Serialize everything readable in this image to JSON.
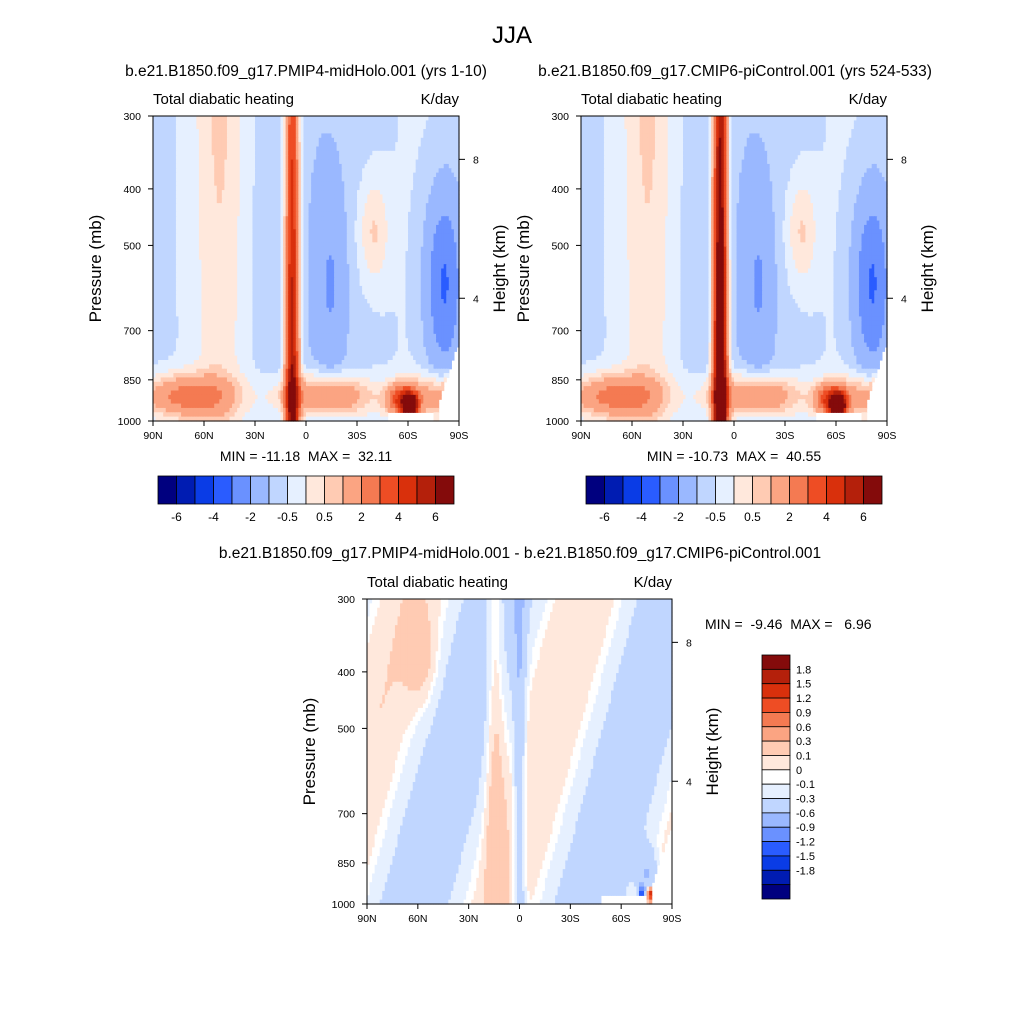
{
  "main_title": "JJA",
  "colors": {
    "abs_palette": [
      "#00007f",
      "#001cb2",
      "#0a3ce6",
      "#2a5cff",
      "#6a91ff",
      "#9ab8ff",
      "#c0d6ff",
      "#e6f0ff",
      "#ffe8dc",
      "#ffcbb3",
      "#fba482",
      "#f47a52",
      "#ee4d24",
      "#d9300c",
      "#b4200b",
      "#840b0b"
    ],
    "diff_palette": [
      "#00007f",
      "#001cb2",
      "#0a3ce6",
      "#2a5cff",
      "#6a91ff",
      "#9ab8ff",
      "#c0d6ff",
      "#e6f0ff",
      "#ffffff",
      "#ffe8dc",
      "#ffcbb3",
      "#fba482",
      "#f47a52",
      "#ee4d24",
      "#d9300c",
      "#b4200b",
      "#840b0b"
    ]
  },
  "chart_data": [
    {
      "type": "heatmap",
      "id": "panel-midholo",
      "title": "b.e21.B1850.f09_g17.PMIP4-midHolo.001 (yrs 1-10)",
      "subtitle_left": "Total diabatic heating",
      "subtitle_right": "K/day",
      "ylabel": "Pressure (mb)",
      "y2label": "Height (km)",
      "x_ticks": [
        "90N",
        "60N",
        "30N",
        "0",
        "30S",
        "60S",
        "90S"
      ],
      "y_ticks": [
        "300",
        "400",
        "500",
        "700",
        "850",
        "1000"
      ],
      "y2_ticks": [
        "8",
        "4"
      ],
      "stats": "MIN = -11.18  MAX =  32.11",
      "colorbar_labels": [
        "-6",
        "-4",
        "-2",
        "-0.5",
        "0.5",
        "2",
        "4",
        "6"
      ],
      "ylim": [
        1000,
        300
      ],
      "xlim": [
        90,
        -90
      ],
      "min": -11.18,
      "max": 32.11
    },
    {
      "type": "heatmap",
      "id": "panel-picontrol",
      "title": "b.e21.B1850.f09_g17.CMIP6-piControl.001 (yrs 524-533)",
      "subtitle_left": "Total diabatic heating",
      "subtitle_right": "K/day",
      "ylabel": "Pressure (mb)",
      "y2label": "Height (km)",
      "x_ticks": [
        "90N",
        "60N",
        "30N",
        "0",
        "30S",
        "60S",
        "90S"
      ],
      "y_ticks": [
        "300",
        "400",
        "500",
        "700",
        "850",
        "1000"
      ],
      "y2_ticks": [
        "8",
        "4"
      ],
      "stats": "MIN = -10.73  MAX =  40.55",
      "colorbar_labels": [
        "-6",
        "-4",
        "-2",
        "-0.5",
        "0.5",
        "2",
        "4",
        "6"
      ],
      "ylim": [
        1000,
        300
      ],
      "xlim": [
        90,
        -90
      ],
      "min": -10.73,
      "max": 40.55
    },
    {
      "type": "heatmap",
      "id": "panel-diff",
      "title": "b.e21.B1850.f09_g17.PMIP4-midHolo.001 - b.e21.B1850.f09_g17.CMIP6-piControl.001",
      "subtitle_left": "Total diabatic heating",
      "subtitle_right": "K/day",
      "ylabel": "Pressure (mb)",
      "y2label": "Height (km)",
      "x_ticks": [
        "90N",
        "60N",
        "30N",
        "0",
        "30S",
        "60S",
        "90S"
      ],
      "y_ticks": [
        "300",
        "400",
        "500",
        "700",
        "850",
        "1000"
      ],
      "y2_ticks": [
        "8",
        "4"
      ],
      "stats": "MIN =  -9.46  MAX =   6.96",
      "colorbar_labels": [
        "1.8",
        "1.5",
        "1.2",
        "0.9",
        "0.6",
        "0.3",
        "0.1",
        "0",
        "-0.1",
        "-0.3",
        "-0.6",
        "-0.9",
        "-1.2",
        "-1.5",
        "-1.8"
      ],
      "ylim": [
        1000,
        300
      ],
      "xlim": [
        90,
        -90
      ],
      "min": -9.46,
      "max": 6.96
    }
  ]
}
